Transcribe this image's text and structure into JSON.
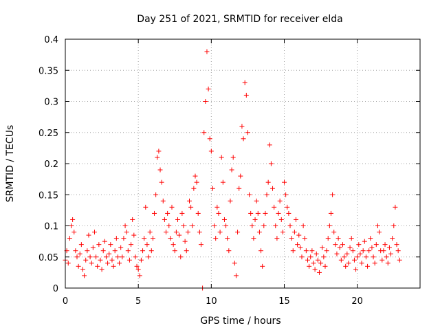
{
  "chart_data": {
    "type": "scatter",
    "title": "Day 251 of 2021, SRMTID for receiver elda",
    "xlabel": "GPS time / hours",
    "ylabel": "SRMTID / TECUs",
    "xlim": [
      0,
      24.3
    ],
    "ylim": [
      0,
      0.4
    ],
    "xticks": [
      0,
      5,
      10,
      15,
      20
    ],
    "xtick_labels": [
      "0",
      "5",
      "10",
      "15",
      "20"
    ],
    "yticks": [
      0,
      0.05,
      0.1,
      0.15,
      0.2,
      0.25,
      0.3,
      0.35,
      0.4
    ],
    "ytick_labels": [
      "0",
      "0.05",
      "0.1",
      "0.15",
      "0.2",
      "0.25",
      "0.3",
      "0.35",
      "0.4"
    ],
    "grid": true,
    "marker": "plus",
    "color": "#ff0000",
    "series": [
      {
        "name": "elda",
        "points": [
          [
            0.0,
            0.045
          ],
          [
            0.1,
            0.06
          ],
          [
            0.2,
            0.04
          ],
          [
            0.3,
            0.08
          ],
          [
            0.4,
            0.1
          ],
          [
            0.5,
            0.11
          ],
          [
            0.6,
            0.09
          ],
          [
            0.7,
            0.06
          ],
          [
            0.8,
            0.05
          ],
          [
            0.9,
            0.035
          ],
          [
            1.0,
            0.055
          ],
          [
            1.1,
            0.07
          ],
          [
            1.2,
            0.03
          ],
          [
            1.3,
            0.02
          ],
          [
            1.4,
            0.045
          ],
          [
            1.5,
            0.06
          ],
          [
            1.6,
            0.085
          ],
          [
            1.7,
            0.05
          ],
          [
            1.8,
            0.04
          ],
          [
            1.9,
            0.065
          ],
          [
            2.0,
            0.09
          ],
          [
            2.1,
            0.05
          ],
          [
            2.2,
            0.035
          ],
          [
            2.3,
            0.07
          ],
          [
            2.4,
            0.045
          ],
          [
            2.5,
            0.03
          ],
          [
            2.6,
            0.06
          ],
          [
            2.7,
            0.075
          ],
          [
            2.8,
            0.05
          ],
          [
            2.9,
            0.04
          ],
          [
            3.0,
            0.055
          ],
          [
            3.1,
            0.07
          ],
          [
            3.2,
            0.045
          ],
          [
            3.3,
            0.035
          ],
          [
            3.4,
            0.06
          ],
          [
            3.5,
            0.08
          ],
          [
            3.6,
            0.05
          ],
          [
            3.7,
            0.04
          ],
          [
            3.8,
            0.065
          ],
          [
            3.9,
            0.05
          ],
          [
            4.0,
            0.08
          ],
          [
            4.1,
            0.1
          ],
          [
            4.2,
            0.09
          ],
          [
            4.3,
            0.06
          ],
          [
            4.4,
            0.045
          ],
          [
            4.5,
            0.07
          ],
          [
            4.6,
            0.11
          ],
          [
            4.7,
            0.085
          ],
          [
            4.8,
            0.05
          ],
          [
            4.9,
            0.035
          ],
          [
            5.0,
            0.03
          ],
          [
            5.1,
            0.02
          ],
          [
            5.2,
            0.045
          ],
          [
            5.3,
            0.06
          ],
          [
            5.4,
            0.08
          ],
          [
            5.5,
            0.13
          ],
          [
            5.6,
            0.07
          ],
          [
            5.7,
            0.05
          ],
          [
            5.8,
            0.09
          ],
          [
            5.9,
            0.06
          ],
          [
            6.0,
            0.08
          ],
          [
            6.1,
            0.12
          ],
          [
            6.2,
            0.15
          ],
          [
            6.3,
            0.21
          ],
          [
            6.4,
            0.22
          ],
          [
            6.5,
            0.19
          ],
          [
            6.6,
            0.17
          ],
          [
            6.7,
            0.14
          ],
          [
            6.8,
            0.11
          ],
          [
            6.9,
            0.09
          ],
          [
            7.0,
            0.12
          ],
          [
            7.1,
            0.1
          ],
          [
            7.2,
            0.08
          ],
          [
            7.3,
            0.13
          ],
          [
            7.4,
            0.07
          ],
          [
            7.5,
            0.06
          ],
          [
            7.6,
            0.09
          ],
          [
            7.7,
            0.11
          ],
          [
            7.8,
            0.085
          ],
          [
            7.9,
            0.05
          ],
          [
            8.0,
            0.12
          ],
          [
            8.1,
            0.1
          ],
          [
            8.2,
            0.075
          ],
          [
            8.3,
            0.06
          ],
          [
            8.4,
            0.09
          ],
          [
            8.5,
            0.14
          ],
          [
            8.6,
            0.13
          ],
          [
            8.7,
            0.1
          ],
          [
            8.8,
            0.16
          ],
          [
            8.9,
            0.18
          ],
          [
            9.0,
            0.17
          ],
          [
            9.1,
            0.12
          ],
          [
            9.2,
            0.09
          ],
          [
            9.3,
            0.07
          ],
          [
            9.4,
            0.0
          ],
          [
            9.5,
            0.25
          ],
          [
            9.6,
            0.3
          ],
          [
            9.7,
            0.38
          ],
          [
            9.8,
            0.32
          ],
          [
            9.9,
            0.24
          ],
          [
            10.0,
            0.22
          ],
          [
            10.1,
            0.16
          ],
          [
            10.2,
            0.1
          ],
          [
            10.3,
            0.08
          ],
          [
            10.4,
            0.13
          ],
          [
            10.5,
            0.12
          ],
          [
            10.6,
            0.09
          ],
          [
            10.7,
            0.21
          ],
          [
            10.8,
            0.17
          ],
          [
            10.9,
            0.11
          ],
          [
            11.0,
            0.1
          ],
          [
            11.1,
            0.08
          ],
          [
            11.2,
            0.06
          ],
          [
            11.3,
            0.14
          ],
          [
            11.4,
            0.19
          ],
          [
            11.5,
            0.21
          ],
          [
            11.6,
            0.04
          ],
          [
            11.7,
            0.02
          ],
          [
            11.8,
            0.09
          ],
          [
            11.9,
            0.16
          ],
          [
            12.0,
            0.18
          ],
          [
            12.1,
            0.26
          ],
          [
            12.2,
            0.24
          ],
          [
            12.3,
            0.33
          ],
          [
            12.4,
            0.31
          ],
          [
            12.5,
            0.25
          ],
          [
            12.6,
            0.15
          ],
          [
            12.7,
            0.12
          ],
          [
            12.8,
            0.1
          ],
          [
            12.9,
            0.08
          ],
          [
            13.0,
            0.11
          ],
          [
            13.1,
            0.14
          ],
          [
            13.2,
            0.12
          ],
          [
            13.3,
            0.09
          ],
          [
            13.4,
            0.06
          ],
          [
            13.5,
            0.035
          ],
          [
            13.6,
            0.1
          ],
          [
            13.7,
            0.12
          ],
          [
            13.8,
            0.15
          ],
          [
            13.9,
            0.17
          ],
          [
            14.0,
            0.23
          ],
          [
            14.1,
            0.2
          ],
          [
            14.2,
            0.16
          ],
          [
            14.3,
            0.13
          ],
          [
            14.4,
            0.1
          ],
          [
            14.5,
            0.08
          ],
          [
            14.6,
            0.12
          ],
          [
            14.7,
            0.14
          ],
          [
            14.8,
            0.11
          ],
          [
            14.9,
            0.09
          ],
          [
            15.0,
            0.17
          ],
          [
            15.1,
            0.15
          ],
          [
            15.2,
            0.13
          ],
          [
            15.3,
            0.12
          ],
          [
            15.4,
            0.1
          ],
          [
            15.5,
            0.08
          ],
          [
            15.6,
            0.06
          ],
          [
            15.7,
            0.09
          ],
          [
            15.8,
            0.11
          ],
          [
            15.9,
            0.07
          ],
          [
            16.0,
            0.085
          ],
          [
            16.1,
            0.065
          ],
          [
            16.2,
            0.05
          ],
          [
            16.3,
            0.1
          ],
          [
            16.4,
            0.08
          ],
          [
            16.5,
            0.06
          ],
          [
            16.6,
            0.045
          ],
          [
            16.7,
            0.035
          ],
          [
            16.8,
            0.05
          ],
          [
            16.9,
            0.06
          ],
          [
            17.0,
            0.04
          ],
          [
            17.1,
            0.03
          ],
          [
            17.2,
            0.055
          ],
          [
            17.3,
            0.045
          ],
          [
            17.4,
            0.025
          ],
          [
            17.5,
            0.04
          ],
          [
            17.6,
            0.065
          ],
          [
            17.7,
            0.05
          ],
          [
            17.8,
            0.035
          ],
          [
            17.9,
            0.06
          ],
          [
            18.0,
            0.08
          ],
          [
            18.1,
            0.1
          ],
          [
            18.2,
            0.12
          ],
          [
            18.3,
            0.15
          ],
          [
            18.4,
            0.09
          ],
          [
            18.5,
            0.07
          ],
          [
            18.6,
            0.055
          ],
          [
            18.7,
            0.08
          ],
          [
            18.8,
            0.065
          ],
          [
            18.9,
            0.045
          ],
          [
            19.0,
            0.07
          ],
          [
            19.1,
            0.05
          ],
          [
            19.2,
            0.035
          ],
          [
            19.3,
            0.055
          ],
          [
            19.4,
            0.04
          ],
          [
            19.5,
            0.065
          ],
          [
            19.6,
            0.08
          ],
          [
            19.7,
            0.06
          ],
          [
            19.8,
            0.045
          ],
          [
            19.9,
            0.03
          ],
          [
            20.0,
            0.05
          ],
          [
            20.1,
            0.07
          ],
          [
            20.2,
            0.055
          ],
          [
            20.3,
            0.04
          ],
          [
            20.4,
            0.06
          ],
          [
            20.5,
            0.075
          ],
          [
            20.6,
            0.05
          ],
          [
            20.7,
            0.035
          ],
          [
            20.8,
            0.06
          ],
          [
            20.9,
            0.08
          ],
          [
            21.0,
            0.065
          ],
          [
            21.1,
            0.05
          ],
          [
            21.2,
            0.04
          ],
          [
            21.3,
            0.07
          ],
          [
            21.4,
            0.1
          ],
          [
            21.5,
            0.09
          ],
          [
            21.6,
            0.06
          ],
          [
            21.7,
            0.045
          ],
          [
            21.8,
            0.06
          ],
          [
            21.9,
            0.07
          ],
          [
            22.0,
            0.05
          ],
          [
            22.1,
            0.04
          ],
          [
            22.2,
            0.065
          ],
          [
            22.3,
            0.055
          ],
          [
            22.4,
            0.08
          ],
          [
            22.5,
            0.1
          ],
          [
            22.6,
            0.13
          ],
          [
            22.7,
            0.07
          ],
          [
            22.8,
            0.06
          ],
          [
            22.9,
            0.045
          ]
        ]
      }
    ]
  }
}
